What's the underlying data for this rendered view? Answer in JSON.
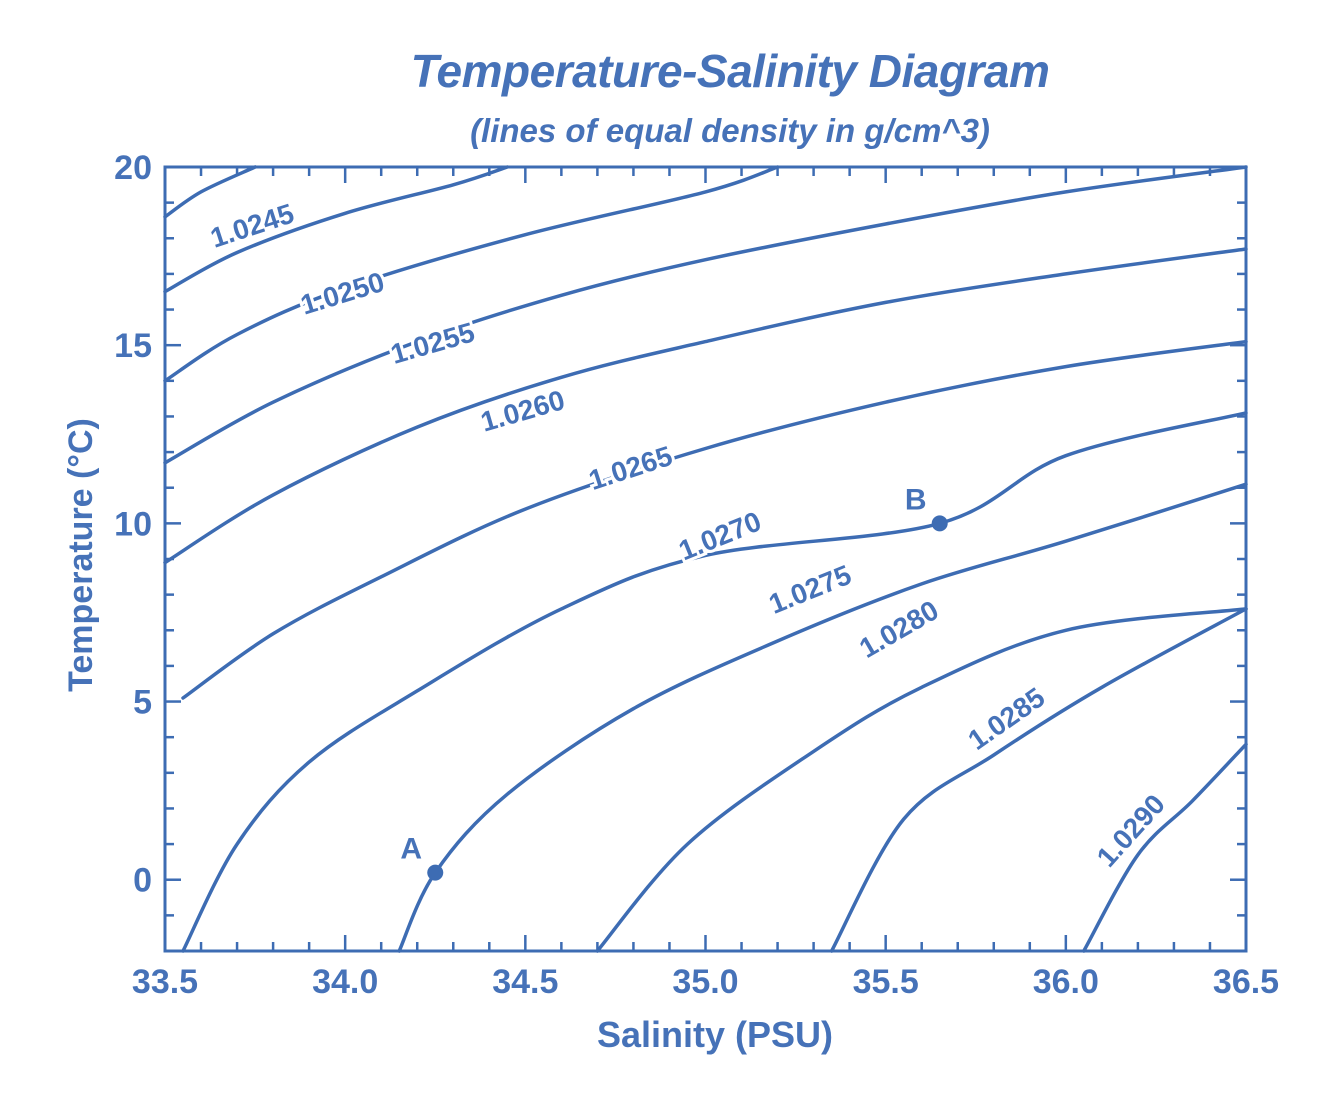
{
  "chart_data": {
    "type": "line",
    "title": "Temperature-Salinity Diagram",
    "subtitle": "(lines of equal density in g/cm^3)",
    "xlabel": "Salinity (PSU)",
    "ylabel": "Temperature (°C)",
    "xlim": [
      33.5,
      36.5
    ],
    "ylim": [
      -2,
      20
    ],
    "xticks": [
      "33.5",
      "34.0",
      "34.5",
      "35.0",
      "35.5",
      "36.0",
      "36.5"
    ],
    "yticks": [
      "0",
      "5",
      "10",
      "15",
      "20"
    ],
    "grid": false,
    "colors": {
      "line": "#3d6cb3",
      "text": "#4672b8",
      "background": "#ffffff"
    },
    "series": [
      {
        "name": "1.0245",
        "points": [
          [
            33.5,
            18.6
          ],
          [
            33.6,
            19.3
          ],
          [
            33.75,
            20.0
          ]
        ]
      },
      {
        "name": "1.0250",
        "points": [
          [
            33.5,
            16.5
          ],
          [
            33.7,
            17.6
          ],
          [
            34.0,
            18.7
          ],
          [
            34.3,
            19.5
          ],
          [
            34.45,
            20.0
          ]
        ]
      },
      {
        "name": "1.0255",
        "points": [
          [
            33.5,
            14.0
          ],
          [
            33.7,
            15.3
          ],
          [
            34.0,
            16.6
          ],
          [
            34.5,
            18.1
          ],
          [
            35.0,
            19.3
          ],
          [
            35.2,
            20.0
          ]
        ]
      },
      {
        "name": "1.0260",
        "points": [
          [
            33.5,
            11.7
          ],
          [
            33.8,
            13.4
          ],
          [
            34.2,
            15.1
          ],
          [
            34.6,
            16.4
          ],
          [
            35.0,
            17.4
          ],
          [
            35.5,
            18.4
          ],
          [
            36.0,
            19.3
          ],
          [
            36.5,
            20.0
          ]
        ]
      },
      {
        "name": "1.0265",
        "points": [
          [
            33.5,
            8.9
          ],
          [
            33.8,
            10.8
          ],
          [
            34.2,
            12.7
          ],
          [
            34.6,
            14.1
          ],
          [
            35.0,
            15.1
          ],
          [
            35.5,
            16.2
          ],
          [
            36.0,
            17.0
          ],
          [
            36.5,
            17.7
          ]
        ]
      },
      {
        "name": "1.0270",
        "points": [
          [
            33.55,
            5.1
          ],
          [
            33.8,
            6.9
          ],
          [
            34.1,
            8.5
          ],
          [
            34.5,
            10.4
          ],
          [
            35.0,
            12.1
          ],
          [
            35.5,
            13.4
          ],
          [
            36.0,
            14.4
          ],
          [
            36.5,
            15.1
          ]
        ]
      },
      {
        "name": "1.0275",
        "points": [
          [
            33.55,
            -2.0
          ],
          [
            33.7,
            1.0
          ],
          [
            33.9,
            3.3
          ],
          [
            34.2,
            5.3
          ],
          [
            34.6,
            7.6
          ],
          [
            35.0,
            9.1
          ],
          [
            35.65,
            10.0
          ],
          [
            36.0,
            11.9
          ],
          [
            36.5,
            13.1
          ]
        ]
      },
      {
        "name": "1.0280",
        "points": [
          [
            34.15,
            -2.0
          ],
          [
            34.25,
            0.2
          ],
          [
            34.45,
            2.4
          ],
          [
            34.8,
            4.8
          ],
          [
            35.2,
            6.7
          ],
          [
            35.6,
            8.3
          ],
          [
            36.0,
            9.5
          ],
          [
            36.5,
            11.1
          ]
        ]
      },
      {
        "name": "1.0285",
        "points": [
          [
            34.7,
            -2.0
          ],
          [
            34.95,
            1.0
          ],
          [
            35.3,
            3.6
          ],
          [
            35.6,
            5.4
          ],
          [
            36.0,
            7.0
          ],
          [
            36.5,
            7.6
          ]
        ]
      },
      {
        "name": "1.0290",
        "points": [
          [
            35.35,
            -2.0
          ],
          [
            35.55,
            1.7
          ],
          [
            35.8,
            3.5
          ],
          [
            36.1,
            5.4
          ],
          [
            36.5,
            7.6
          ]
        ]
      },
      {
        "name": "1.0290b",
        "points": [
          [
            36.05,
            -2.0
          ],
          [
            36.2,
            0.7
          ],
          [
            36.35,
            2.2
          ],
          [
            36.5,
            3.8
          ]
        ]
      }
    ],
    "annotations": [
      {
        "text": "1.0245",
        "x": 33.75,
        "y": 18.1,
        "angle": -18
      },
      {
        "text": "1.0250",
        "x": 34.0,
        "y": 16.2,
        "angle": -17
      },
      {
        "text": "1.0255",
        "x": 34.25,
        "y": 14.8,
        "angle": -16
      },
      {
        "text": "1.0260",
        "x": 34.5,
        "y": 12.9,
        "angle": -16
      },
      {
        "text": "1.0265",
        "x": 34.8,
        "y": 11.3,
        "angle": -18
      },
      {
        "text": "1.0270",
        "x": 35.05,
        "y": 9.4,
        "angle": -22
      },
      {
        "text": "1.0275",
        "x": 35.3,
        "y": 7.9,
        "angle": -22
      },
      {
        "text": "1.0280",
        "x": 35.55,
        "y": 6.8,
        "angle": -30
      },
      {
        "text": "1.0285",
        "x": 35.85,
        "y": 4.3,
        "angle": -35
      },
      {
        "text": "1.0290",
        "x": 36.2,
        "y": 1.2,
        "angle": -48
      }
    ],
    "points": [
      {
        "label": "A",
        "x": 34.25,
        "y": 0.2
      },
      {
        "label": "B",
        "x": 35.65,
        "y": 10.0
      }
    ]
  }
}
